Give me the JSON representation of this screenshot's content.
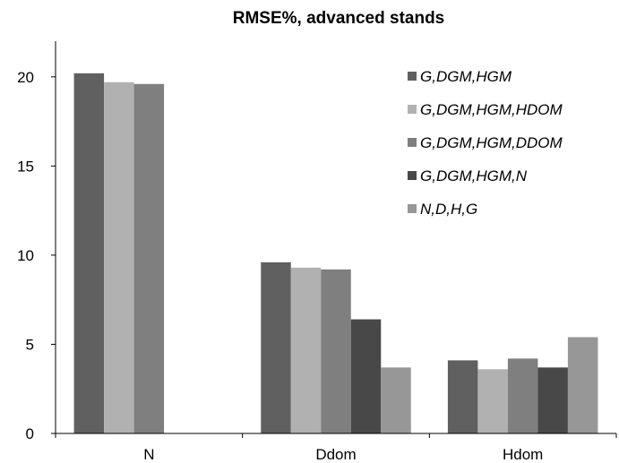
{
  "chart_data": {
    "type": "bar",
    "title": "RMSE%, advanced stands",
    "xlabel": "",
    "ylabel": "",
    "categories": [
      "N",
      "Ddom",
      "Hdom"
    ],
    "ylim": [
      0,
      22
    ],
    "yticks": [
      0,
      5,
      10,
      15,
      20
    ],
    "grid": false,
    "legend_position": "top-right",
    "series": [
      {
        "name": "G,DGM,HGM",
        "color": "#606060",
        "values": [
          20.2,
          9.6,
          4.1
        ]
      },
      {
        "name": "G,DGM,HGM,HDOM",
        "color": "#b1b1b1",
        "values": [
          19.7,
          9.3,
          3.6
        ]
      },
      {
        "name": "G,DGM,HGM,DDOM",
        "color": "#7f7f7f",
        "values": [
          19.6,
          9.2,
          4.2
        ]
      },
      {
        "name": "G,DGM,HGM,N",
        "color": "#484848",
        "values": [
          null,
          6.4,
          3.7
        ]
      },
      {
        "name": "N,D,H,G",
        "color": "#979797",
        "values": [
          null,
          3.7,
          5.4
        ]
      }
    ]
  }
}
